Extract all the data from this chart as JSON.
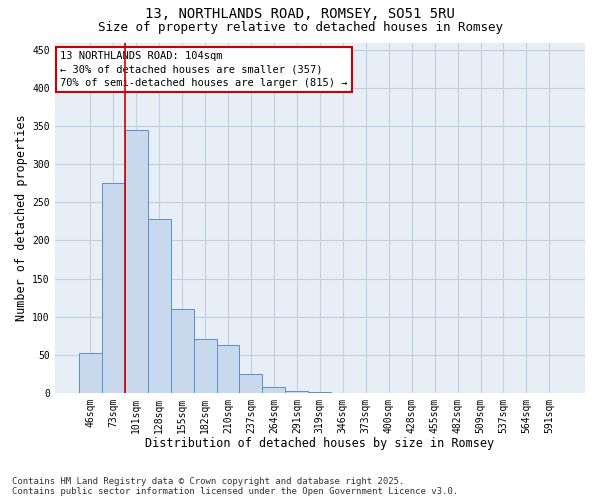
{
  "title": "13, NORTHLANDS ROAD, ROMSEY, SO51 5RU",
  "subtitle": "Size of property relative to detached houses in Romsey",
  "xlabel": "Distribution of detached houses by size in Romsey",
  "ylabel": "Number of detached properties",
  "footer_line1": "Contains HM Land Registry data © Crown copyright and database right 2025.",
  "footer_line2": "Contains public sector information licensed under the Open Government Licence v3.0.",
  "categories": [
    "46sqm",
    "73sqm",
    "101sqm",
    "128sqm",
    "155sqm",
    "182sqm",
    "210sqm",
    "237sqm",
    "264sqm",
    "291sqm",
    "319sqm",
    "346sqm",
    "373sqm",
    "400sqm",
    "428sqm",
    "455sqm",
    "482sqm",
    "509sqm",
    "537sqm",
    "564sqm",
    "591sqm"
  ],
  "values": [
    52,
    275,
    345,
    228,
    110,
    70,
    63,
    25,
    7,
    2,
    1,
    0,
    0,
    0,
    0,
    0,
    0,
    0,
    0,
    0,
    0
  ],
  "bar_color": "#c9d9ed",
  "bar_edge_color": "#5b8fc9",
  "grid_color": "#c0d0e4",
  "background_color": "#e8eef5",
  "annotation_text": "13 NORTHLANDS ROAD: 104sqm\n← 30% of detached houses are smaller (357)\n70% of semi-detached houses are larger (815) →",
  "annotation_box_color": "#ffffff",
  "annotation_box_edge": "#cc0000",
  "vline_color": "#cc0000",
  "vline_x_index": 1.5,
  "ylim": [
    0,
    460
  ],
  "yticks": [
    0,
    50,
    100,
    150,
    200,
    250,
    300,
    350,
    400,
    450
  ],
  "title_fontsize": 10,
  "subtitle_fontsize": 9,
  "axis_label_fontsize": 8.5,
  "tick_fontsize": 7,
  "annotation_fontsize": 7.5,
  "footer_fontsize": 6.5
}
